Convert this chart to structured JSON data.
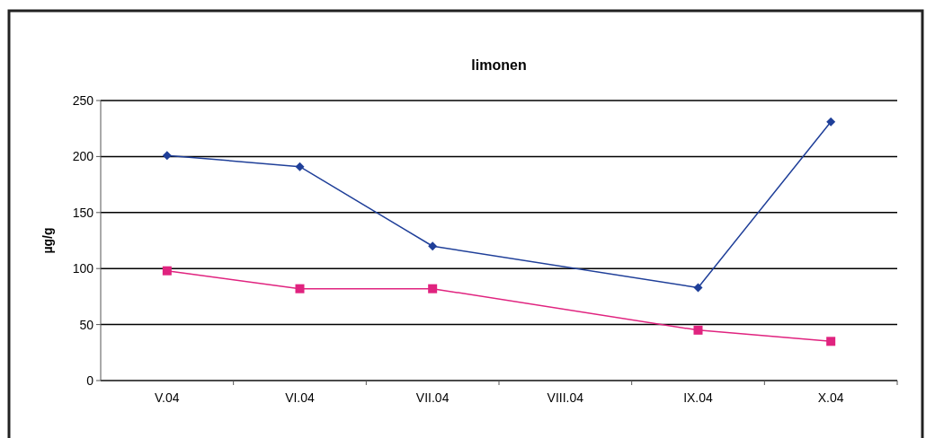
{
  "chart_data": {
    "type": "line",
    "title": "limonen",
    "ylabel": "µg/g",
    "categories": [
      "V.04",
      "VI.04",
      "VII.04",
      "VIII.04",
      "IX.04",
      "X.04"
    ],
    "series": [
      {
        "color": "#1f3f99",
        "marker": "diamond",
        "values": [
          201,
          191,
          120,
          null,
          83,
          231
        ]
      },
      {
        "color": "#e0237f",
        "marker": "square",
        "values": [
          98,
          82,
          82,
          null,
          45,
          35
        ]
      }
    ],
    "ylim": [
      0,
      250
    ],
    "yticks": [
      0,
      50,
      100,
      150,
      200,
      250
    ],
    "grid": "y",
    "line_style": "solid"
  }
}
